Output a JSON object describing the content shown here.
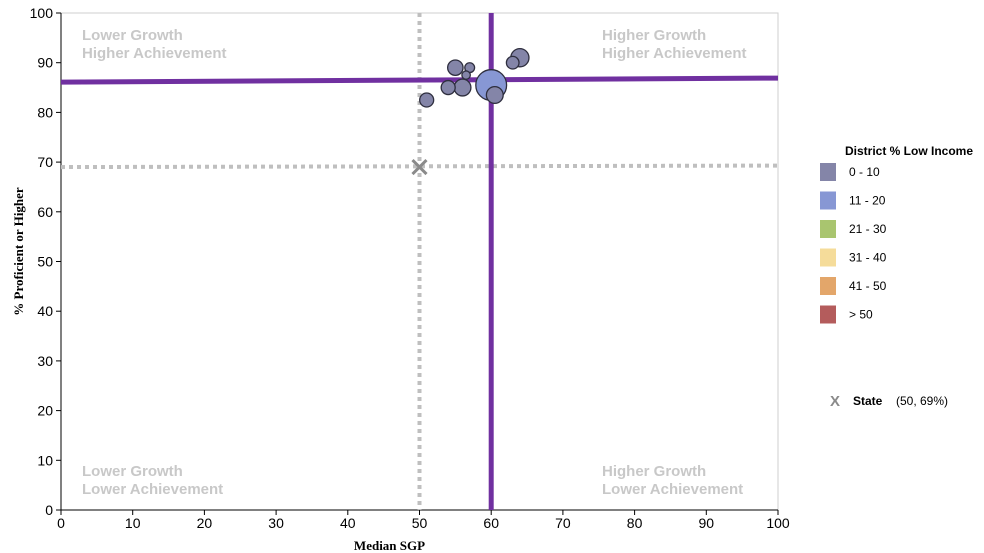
{
  "chart_data": {
    "type": "scatter",
    "xlabel": "Median SGP",
    "ylabel": "% Proficient or Higher",
    "xlim": [
      0,
      100
    ],
    "ylim": [
      0,
      100
    ],
    "x_ticks": [
      "0",
      "10",
      "20",
      "30",
      "40",
      "50",
      "60",
      "70",
      "80",
      "90",
      "100"
    ],
    "y_ticks": [
      "0",
      "10",
      "20",
      "30",
      "40",
      "50",
      "60",
      "70",
      "80",
      "90",
      "100"
    ],
    "grid": false,
    "quadrant_labels": [
      {
        "position": "top-left",
        "line1": "Lower Growth",
        "line2": "Higher Achievement"
      },
      {
        "position": "top-right",
        "line1": "Higher Growth",
        "line2": "Higher Achievement"
      },
      {
        "position": "bottom-left",
        "line1": "Lower Growth",
        "line2": "Lower Achievement"
      },
      {
        "position": "bottom-right",
        "line1": "Higher Growth",
        "line2": "Lower Achievement"
      }
    ],
    "reference_lines": {
      "district": {
        "x": 60,
        "y": 86.5,
        "color": "#7030a0"
      },
      "state": {
        "x": 50,
        "y": 69,
        "color": "#bfbfbf"
      }
    },
    "points": [
      {
        "x": 51,
        "y": 82.5,
        "size": 1.0,
        "color": "#8485a8"
      },
      {
        "x": 54,
        "y": 85,
        "size": 1.0,
        "color": "#8485a8"
      },
      {
        "x": 55,
        "y": 89,
        "size": 1.1,
        "color": "#8485a8"
      },
      {
        "x": 56,
        "y": 85,
        "size": 1.2,
        "color": "#8485a8"
      },
      {
        "x": 56.5,
        "y": 87.5,
        "size": 0.6,
        "color": "#8485a8"
      },
      {
        "x": 57,
        "y": 89,
        "size": 0.7,
        "color": "#8485a8"
      },
      {
        "x": 60,
        "y": 85.5,
        "size": 2.2,
        "color": "#8797d4"
      },
      {
        "x": 60.5,
        "y": 83.5,
        "size": 1.2,
        "color": "#8485a8"
      },
      {
        "x": 63,
        "y": 90,
        "size": 0.9,
        "color": "#8485a8"
      },
      {
        "x": 64,
        "y": 91,
        "size": 1.3,
        "color": "#8485a8"
      }
    ],
    "legend": {
      "title": "District % Low Income",
      "placement": "right",
      "entries": [
        {
          "label": "0 - 10",
          "color": "#8485a8"
        },
        {
          "label": "11 - 20",
          "color": "#8797d4"
        },
        {
          "label": "21 - 30",
          "color": "#a9c56f"
        },
        {
          "label": "31 - 40",
          "color": "#f5dc9a"
        },
        {
          "label": "41 - 50",
          "color": "#e3a66a"
        },
        {
          "label": "> 50",
          "color": "#b45c5c"
        }
      ]
    },
    "state_marker": {
      "symbol": "X",
      "label": "State",
      "value_text": "(50,   69%)"
    }
  }
}
